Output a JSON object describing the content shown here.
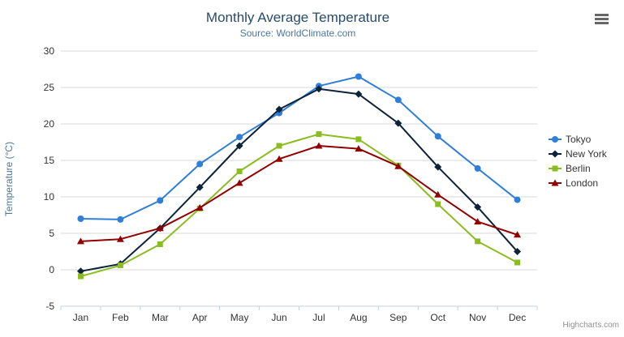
{
  "chart_data": {
    "type": "line",
    "title": "Monthly Average Temperature",
    "subtitle": "Source: WorldClimate.com",
    "xlabel": "",
    "ylabel": "Temperature (°C)",
    "categories": [
      "Jan",
      "Feb",
      "Mar",
      "Apr",
      "May",
      "Jun",
      "Jul",
      "Aug",
      "Sep",
      "Oct",
      "Nov",
      "Dec"
    ],
    "ylim": [
      -5,
      30
    ],
    "ytick_interval": 5,
    "grid": true,
    "legend_position": "right",
    "series": [
      {
        "name": "Tokyo",
        "color": "#2f7ed8",
        "marker": "circle",
        "values": [
          7.0,
          6.9,
          9.5,
          14.5,
          18.2,
          21.5,
          25.2,
          26.5,
          23.3,
          18.3,
          13.9,
          9.6
        ]
      },
      {
        "name": "New York",
        "color": "#0d233a",
        "marker": "diamond",
        "values": [
          -0.2,
          0.8,
          5.7,
          11.3,
          17.0,
          22.0,
          24.8,
          24.1,
          20.1,
          14.1,
          8.6,
          2.5
        ]
      },
      {
        "name": "Berlin",
        "color": "#8bbc21",
        "marker": "square",
        "values": [
          -0.9,
          0.6,
          3.5,
          8.4,
          13.5,
          17.0,
          18.6,
          17.9,
          14.3,
          9.0,
          3.9,
          1.0
        ]
      },
      {
        "name": "London",
        "color": "#910000",
        "marker": "triangle",
        "values": [
          3.9,
          4.2,
          5.7,
          8.5,
          11.9,
          15.2,
          17.0,
          16.6,
          14.2,
          10.3,
          6.6,
          4.8
        ]
      }
    ]
  },
  "icons": {
    "menu": "hamburger-menu-icon"
  },
  "credits": "Highcharts.com",
  "colors": {
    "title": "#274b6d",
    "subtitle": "#4d759e",
    "gridline": "#d8d8d8",
    "axis_line": "#c0d0e0"
  }
}
